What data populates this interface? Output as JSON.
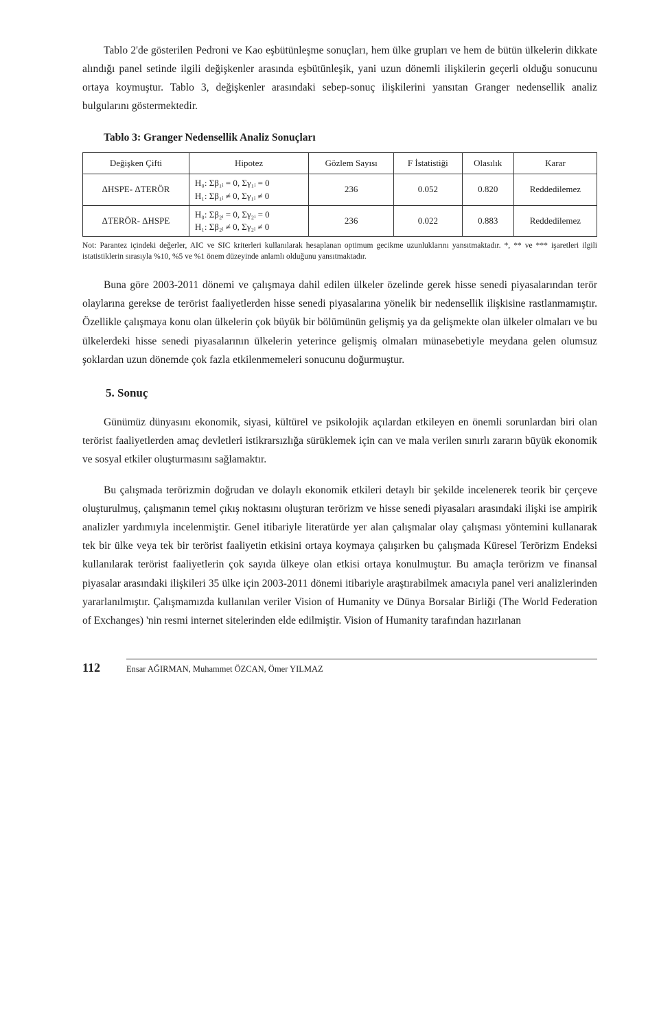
{
  "para1": "Tablo 2'de gösterilen Pedroni ve Kao eşbütünleşme sonuçları, hem ülke grupları ve hem de bütün ülkelerin dikkate alındığı panel setinde ilgili değişkenler arasında eşbütünleşik, yani uzun dönemli ilişkilerin geçerli olduğu sonucunu ortaya koymuştur. Tablo 3, değişkenler arasındaki sebep-sonuç ilişkilerini yansıtan Granger nedensellik analiz bulgularını göstermektedir.",
  "tableTitle": "Tablo 3: Granger Nedensellik Analiz Sonuçları",
  "table": {
    "headers": [
      "Değişken Çifti",
      "Hipotez",
      "Gözlem Sayısı",
      "F İstatistiği",
      "Olasılık",
      "Karar"
    ],
    "rows": [
      {
        "pair": "ΔHSPE- ΔTERÖR",
        "hyp": "H₀: Σβ₁ᵢ = 0,  Σγ₁ᵢ = 0\nH₁: Σβ₁ᵢ ≠ 0,  Σγ₁ᵢ ≠ 0",
        "n": "236",
        "f": "0.052",
        "p": "0.820",
        "decision": "Reddedilemez"
      },
      {
        "pair": "ΔTERÖR- ΔHSPE",
        "hyp": "H₀: Σβ₂ᵢ = 0,  Σγ₂ᵢ = 0\nH₁: Σβ₂ᵢ ≠ 0,  Σγ₂ᵢ ≠ 0",
        "n": "236",
        "f": "0.022",
        "p": "0.883",
        "decision": "Reddedilemez"
      }
    ]
  },
  "note": "Not: Parantez içindeki değerler, AIC ve SIC kriterleri kullanılarak hesaplanan optimum gecikme uzunluklarını yansıtmaktadır. *, ** ve *** işaretleri ilgili istatistiklerin sırasıyla %10, %5 ve %1 önem düzeyinde anlamlı olduğunu yansıtmaktadır.",
  "para2": "Buna göre 2003-2011 dönemi ve çalışmaya dahil edilen ülkeler özelinde gerek hisse senedi piyasalarından terör olaylarına gerekse de terörist faaliyetlerden hisse senedi piyasalarına yönelik bir nedensellik ilişkisine rastlanmamıştır. Özellikle çalışmaya konu olan ülkelerin çok büyük bir bölümünün gelişmiş ya da gelişmekte olan ülkeler olmaları ve bu ülkelerdeki hisse senedi piyasalarının ülkelerin yeterince gelişmiş olmaları münasebetiyle meydana gelen olumsuz şoklardan uzun dönemde çok fazla etkilenmemeleri sonucunu doğurmuştur.",
  "sectionTitle": "5. Sonuç",
  "para3": "Günümüz dünyasını ekonomik, siyasi, kültürel ve psikolojik açılardan etkileyen en önemli sorunlardan biri olan terörist faaliyetlerden amaç devletleri istikrarsızlığa sürüklemek için can ve mala verilen sınırlı zararın büyük ekonomik ve sosyal etkiler oluşturmasını sağlamaktır.",
  "para4": "Bu çalışmada terörizmin doğrudan ve dolaylı ekonomik etkileri detaylı bir şekilde incelenerek teorik bir çerçeve oluşturulmuş, çalışmanın temel çıkış noktasını oluşturan terörizm ve hisse senedi piyasaları arasındaki ilişki ise ampirik analizler yardımıyla incelenmiştir. Genel itibariyle literatürde yer alan çalışmalar olay çalışması yöntemini kullanarak tek bir ülke veya tek bir terörist faaliyetin etkisini ortaya koymaya çalışırken bu çalışmada Küresel Terörizm Endeksi kullanılarak terörist faaliyetlerin çok sayıda ülkeye olan etkisi ortaya konulmuştur. Bu amaçla terörizm ve finansal piyasalar arasındaki ilişkileri 35 ülke için 2003-2011 dönemi itibariyle araştırabilmek amacıyla panel veri analizlerinden yararlanılmıştır. Çalışmamızda kullanılan veriler Vision of Humanity ve Dünya Borsalar Birliği (The World Federation of Exchanges) 'nin resmi internet sitelerinden elde edilmiştir. Vision of Humanity tarafından hazırlanan",
  "pageNumber": "112",
  "authors": "Ensar AĞIRMAN, Muhammet ÖZCAN, Ömer YILMAZ"
}
